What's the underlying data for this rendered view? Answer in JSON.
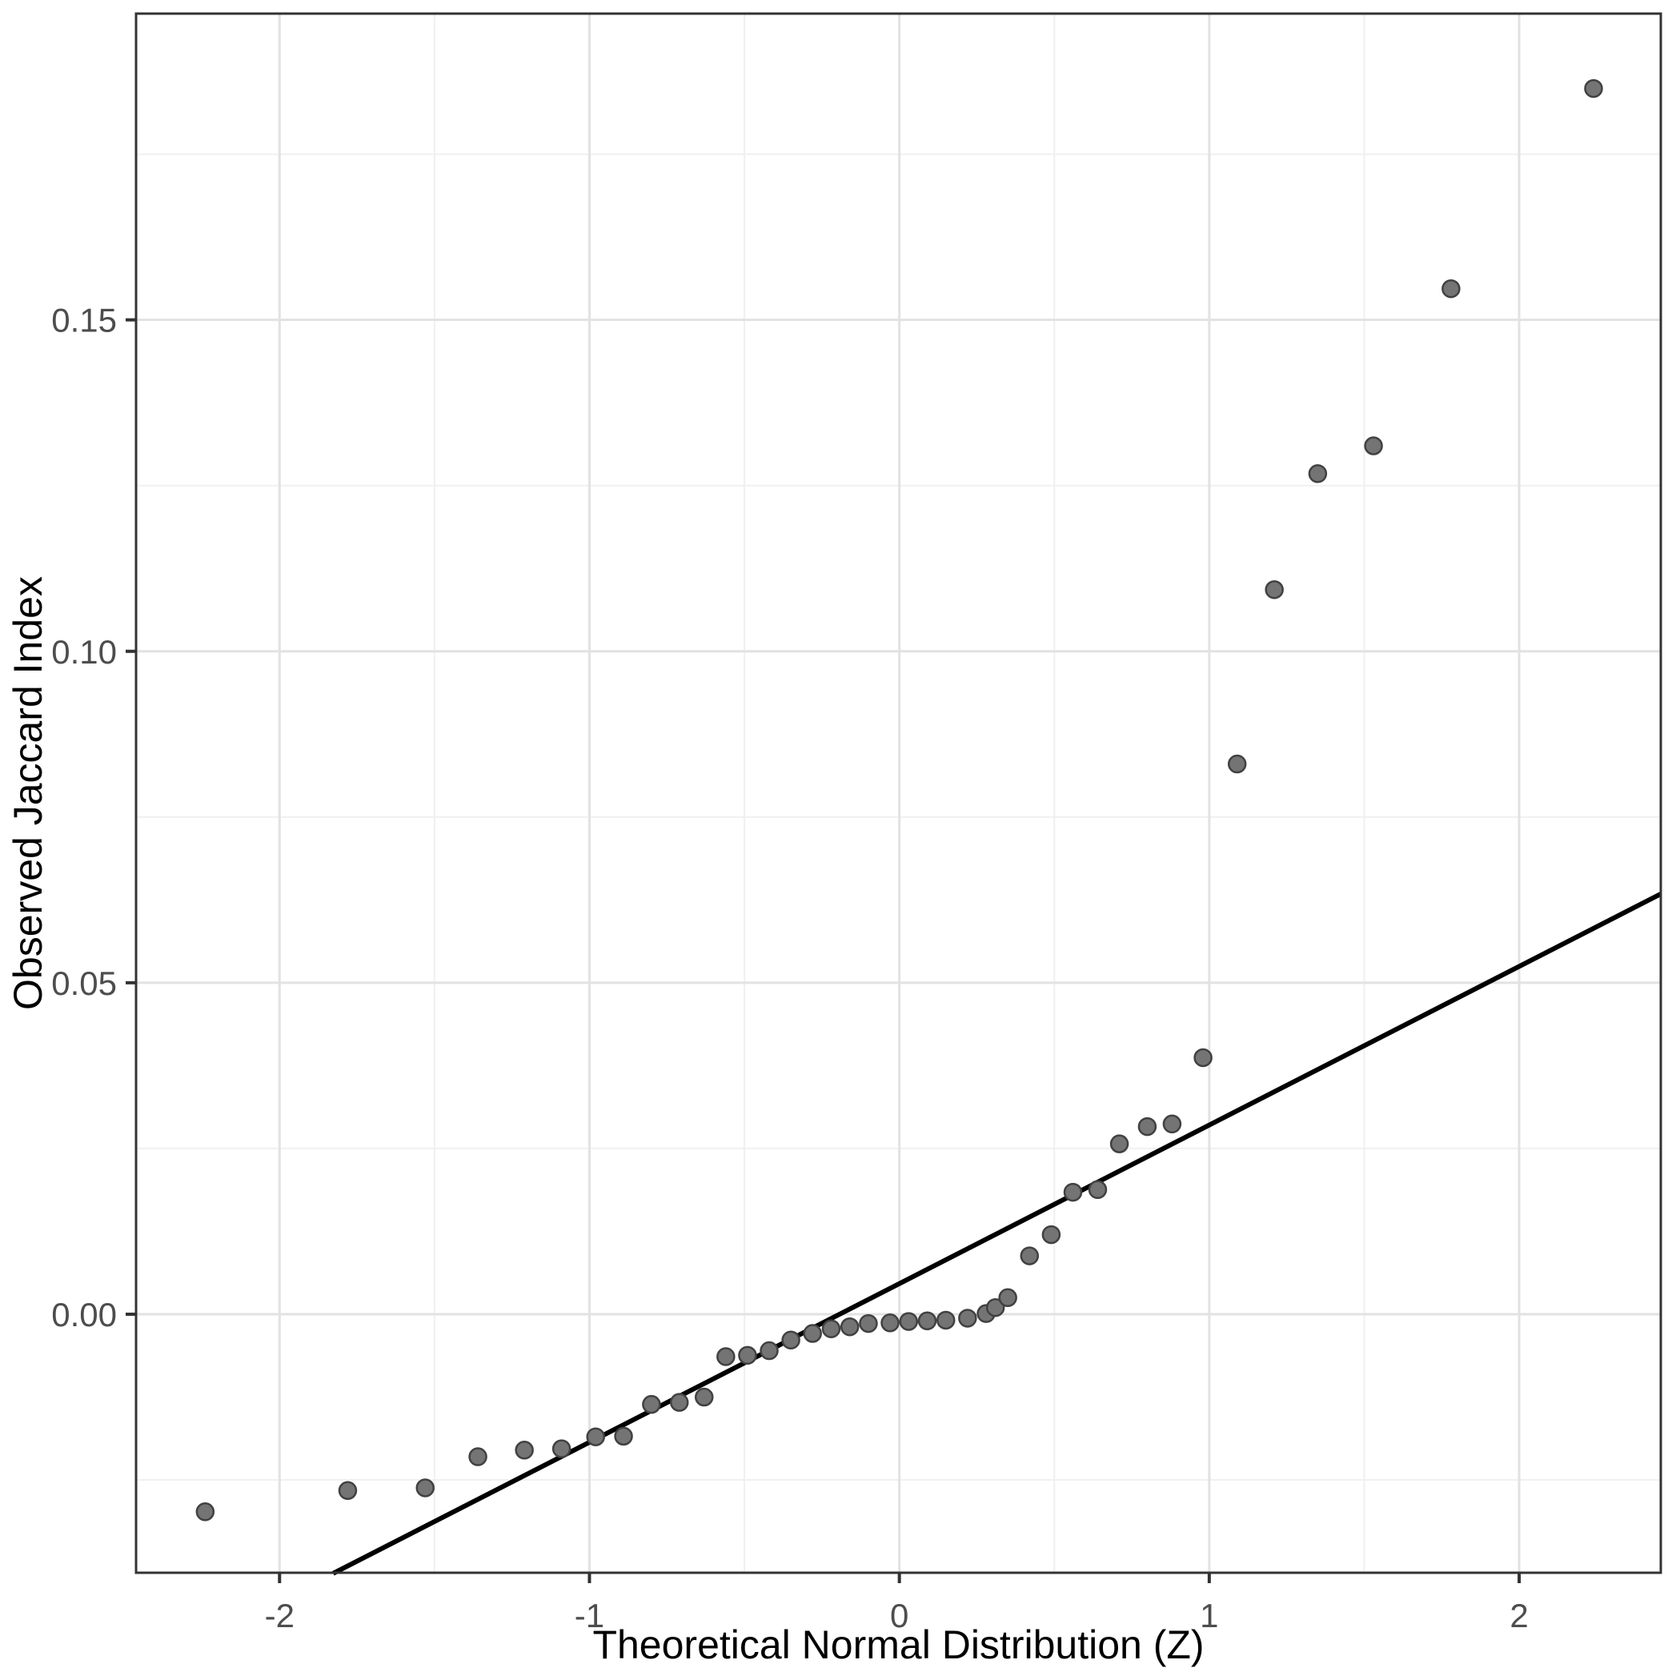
{
  "chart_data": {
    "type": "scatter",
    "title": "",
    "xlabel": "Theoretical Normal Distribution (Z)",
    "ylabel": "Observed Jaccard Index",
    "xlim": [
      -2.463,
      2.457
    ],
    "ylim": [
      -0.039,
      0.1962
    ],
    "grid": "on",
    "legend": "none",
    "x_major_ticks": [
      -2,
      -1,
      0,
      1,
      2
    ],
    "x_major_tick_labels": [
      "-2",
      "-1",
      "0",
      "1",
      "2"
    ],
    "x_minor_ticks": [
      -1.5,
      -0.5,
      0.5,
      1.5
    ],
    "y_major_ticks": [
      0.0,
      0.05,
      0.1,
      0.15
    ],
    "y_major_tick_labels": [
      "0.00",
      "0.05",
      "0.10",
      "0.15"
    ],
    "y_minor_ticks": [
      -0.025,
      0.025,
      0.075,
      0.125,
      0.175
    ],
    "reference_line": {
      "name": "qq-line",
      "x1": -1.827,
      "y1": -0.0391,
      "x2": 2.457,
      "y2": 0.0634,
      "color": "#000000",
      "width": 6
    },
    "series": [
      {
        "name": "observed-vs-theoretical-quantiles",
        "marker": "circle",
        "fill": "#747474",
        "stroke": "#414141",
        "radius": 10.5,
        "points": [
          [
            -2.24,
            -0.0298
          ],
          [
            -1.78,
            -0.0266
          ],
          [
            -1.53,
            -0.0262
          ],
          [
            -1.36,
            -0.0215
          ],
          [
            -1.21,
            -0.0205
          ],
          [
            -1.09,
            -0.0203
          ],
          [
            -0.98,
            -0.0185
          ],
          [
            -0.89,
            -0.0184
          ],
          [
            -0.8,
            -0.0136
          ],
          [
            -0.71,
            -0.0133
          ],
          [
            -0.63,
            -0.0125
          ],
          [
            -0.56,
            -0.0064
          ],
          [
            -0.49,
            -0.0062
          ],
          [
            -0.42,
            -0.0055
          ],
          [
            -0.35,
            -0.0039
          ],
          [
            -0.28,
            -0.0029
          ],
          [
            -0.22,
            -0.0022
          ],
          [
            -0.16,
            -0.0019
          ],
          [
            -0.1,
            -0.0014
          ],
          [
            -0.03,
            -0.0013
          ],
          [
            0.03,
            -0.0011
          ],
          [
            0.09,
            -0.001
          ],
          [
            0.15,
            -0.0009
          ],
          [
            0.22,
            -0.0006
          ],
          [
            0.28,
            0.0001
          ],
          [
            0.31,
            0.001
          ],
          [
            0.35,
            0.0025
          ],
          [
            0.42,
            0.0088
          ],
          [
            0.49,
            0.012
          ],
          [
            0.56,
            0.0184
          ],
          [
            0.64,
            0.0188
          ],
          [
            0.71,
            0.0257
          ],
          [
            0.8,
            0.0283
          ],
          [
            0.88,
            0.0287
          ],
          [
            0.98,
            0.0387
          ],
          [
            1.09,
            0.083
          ],
          [
            1.21,
            0.1093
          ],
          [
            1.35,
            0.1268
          ],
          [
            1.53,
            0.131
          ],
          [
            1.78,
            0.1547
          ],
          [
            2.24,
            0.1849
          ]
        ]
      }
    ],
    "colors": {
      "background": "#ffffff",
      "panel_background": "#ffffff",
      "panel_border": "#333333",
      "grid_major": "#e2e2e2",
      "grid_minor": "#f0f0f0",
      "tick_mark": "#333333",
      "tick_label": "#4d4d4d",
      "axis_title": "#000000"
    }
  }
}
